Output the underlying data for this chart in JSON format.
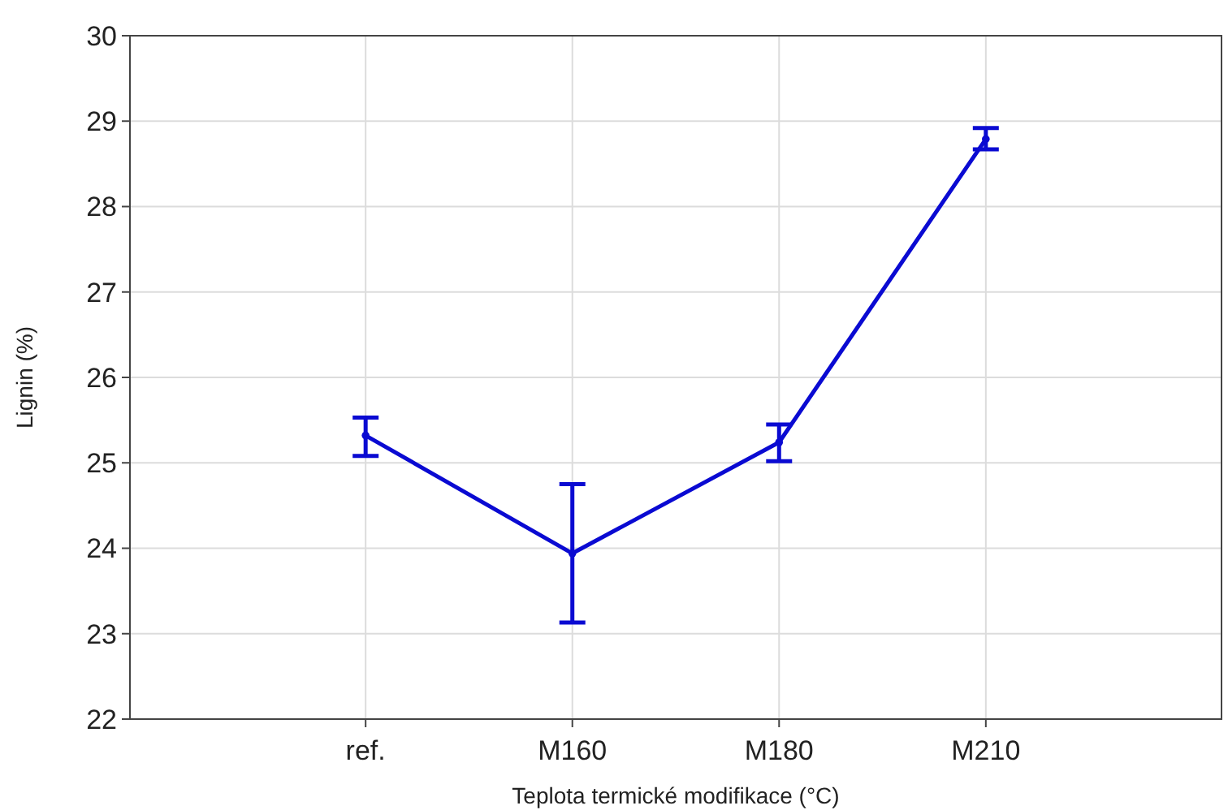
{
  "chart_data": {
    "type": "line",
    "xlabel": "Teplota termické modifikace (°C)",
    "ylabel": "Lignin (%)",
    "categories": [
      "ref.",
      "M160",
      "M180",
      "M210"
    ],
    "series": [
      {
        "color": "#0a0ad2",
        "values": [
          25.32,
          23.94,
          25.24,
          28.79
        ],
        "errors": [
          [
            25.08,
            25.53
          ],
          [
            23.13,
            24.75
          ],
          [
            25.02,
            25.45
          ],
          [
            28.67,
            28.92
          ]
        ]
      }
    ],
    "ylim": [
      22,
      30
    ],
    "yticks": [
      22,
      23,
      24,
      25,
      26,
      27,
      28,
      29,
      30
    ],
    "grid": true,
    "marker": "circle",
    "line_style": "solid"
  }
}
